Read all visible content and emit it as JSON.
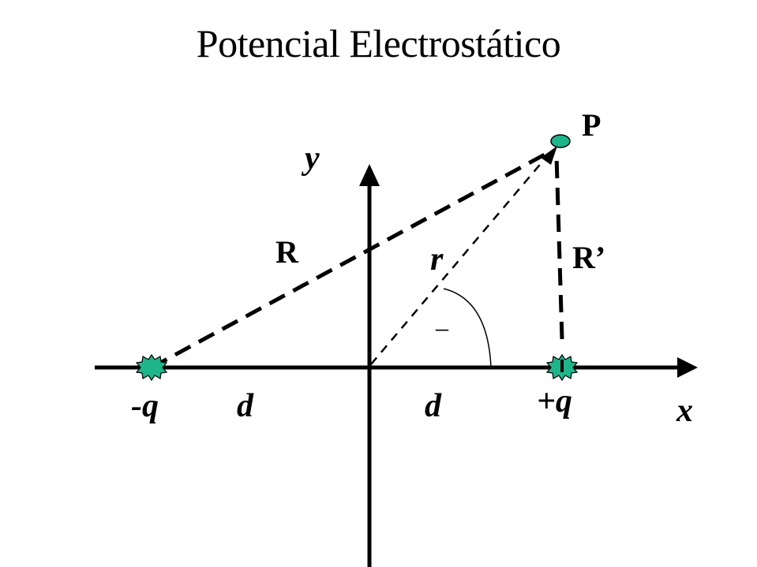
{
  "title": "Potencial Electrostático",
  "labels": {
    "point": "P",
    "y_axis": "y",
    "x_axis": "x",
    "R": "R",
    "R_prime": "R’",
    "r": "r",
    "theta": "–",
    "neg_charge": "-q",
    "pos_charge": "+q",
    "d_left": "d",
    "d_right": "d"
  },
  "colors": {
    "charge_fill": "#1fb58a",
    "stroke": "#000000"
  }
}
